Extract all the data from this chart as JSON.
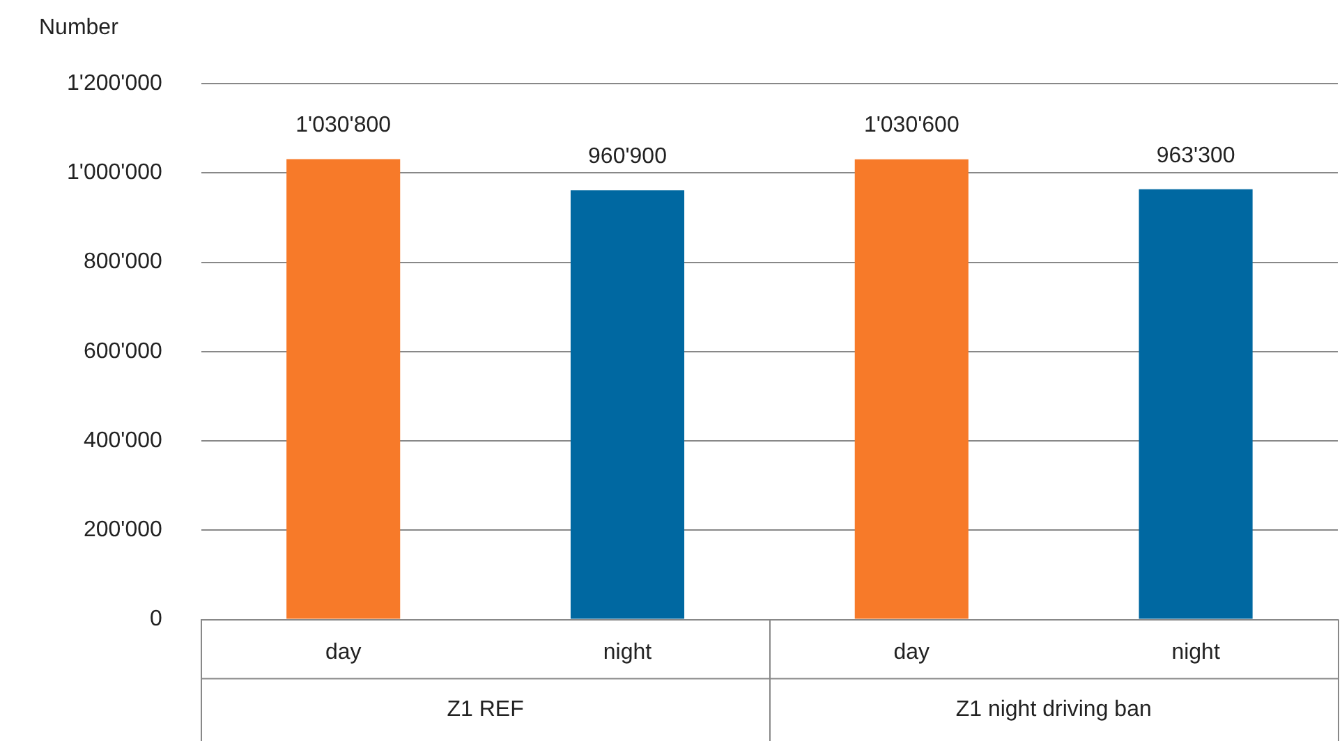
{
  "chart_data": {
    "type": "bar",
    "ylabel": "Number",
    "categories": [
      "day",
      "night",
      "day",
      "night"
    ],
    "values": [
      1030800,
      960900,
      1030600,
      963300
    ],
    "colors": [
      "#f77a29",
      "#0068a1",
      "#f77a29",
      "#0068a1"
    ],
    "value_labels": [
      "1'030'800",
      "960'900",
      "1'030'600",
      "963'300"
    ],
    "ylim": [
      0,
      1200000
    ],
    "yticks": [
      0,
      {
        "value": 200000,
        "label": "200'000"
      },
      {
        "value": 400000,
        "label": "400'000"
      },
      {
        "value": 600000,
        "label": "600'000"
      },
      {
        "value": 800000,
        "label": "800'000"
      },
      {
        "value": 1000000,
        "label": "1'000'000"
      },
      {
        "value": 1200000,
        "label": "1'200'000"
      }
    ],
    "annotations": [
      "Z1 REF",
      "Z1 night driving ban"
    ],
    "grid": "y",
    "legend": false
  }
}
